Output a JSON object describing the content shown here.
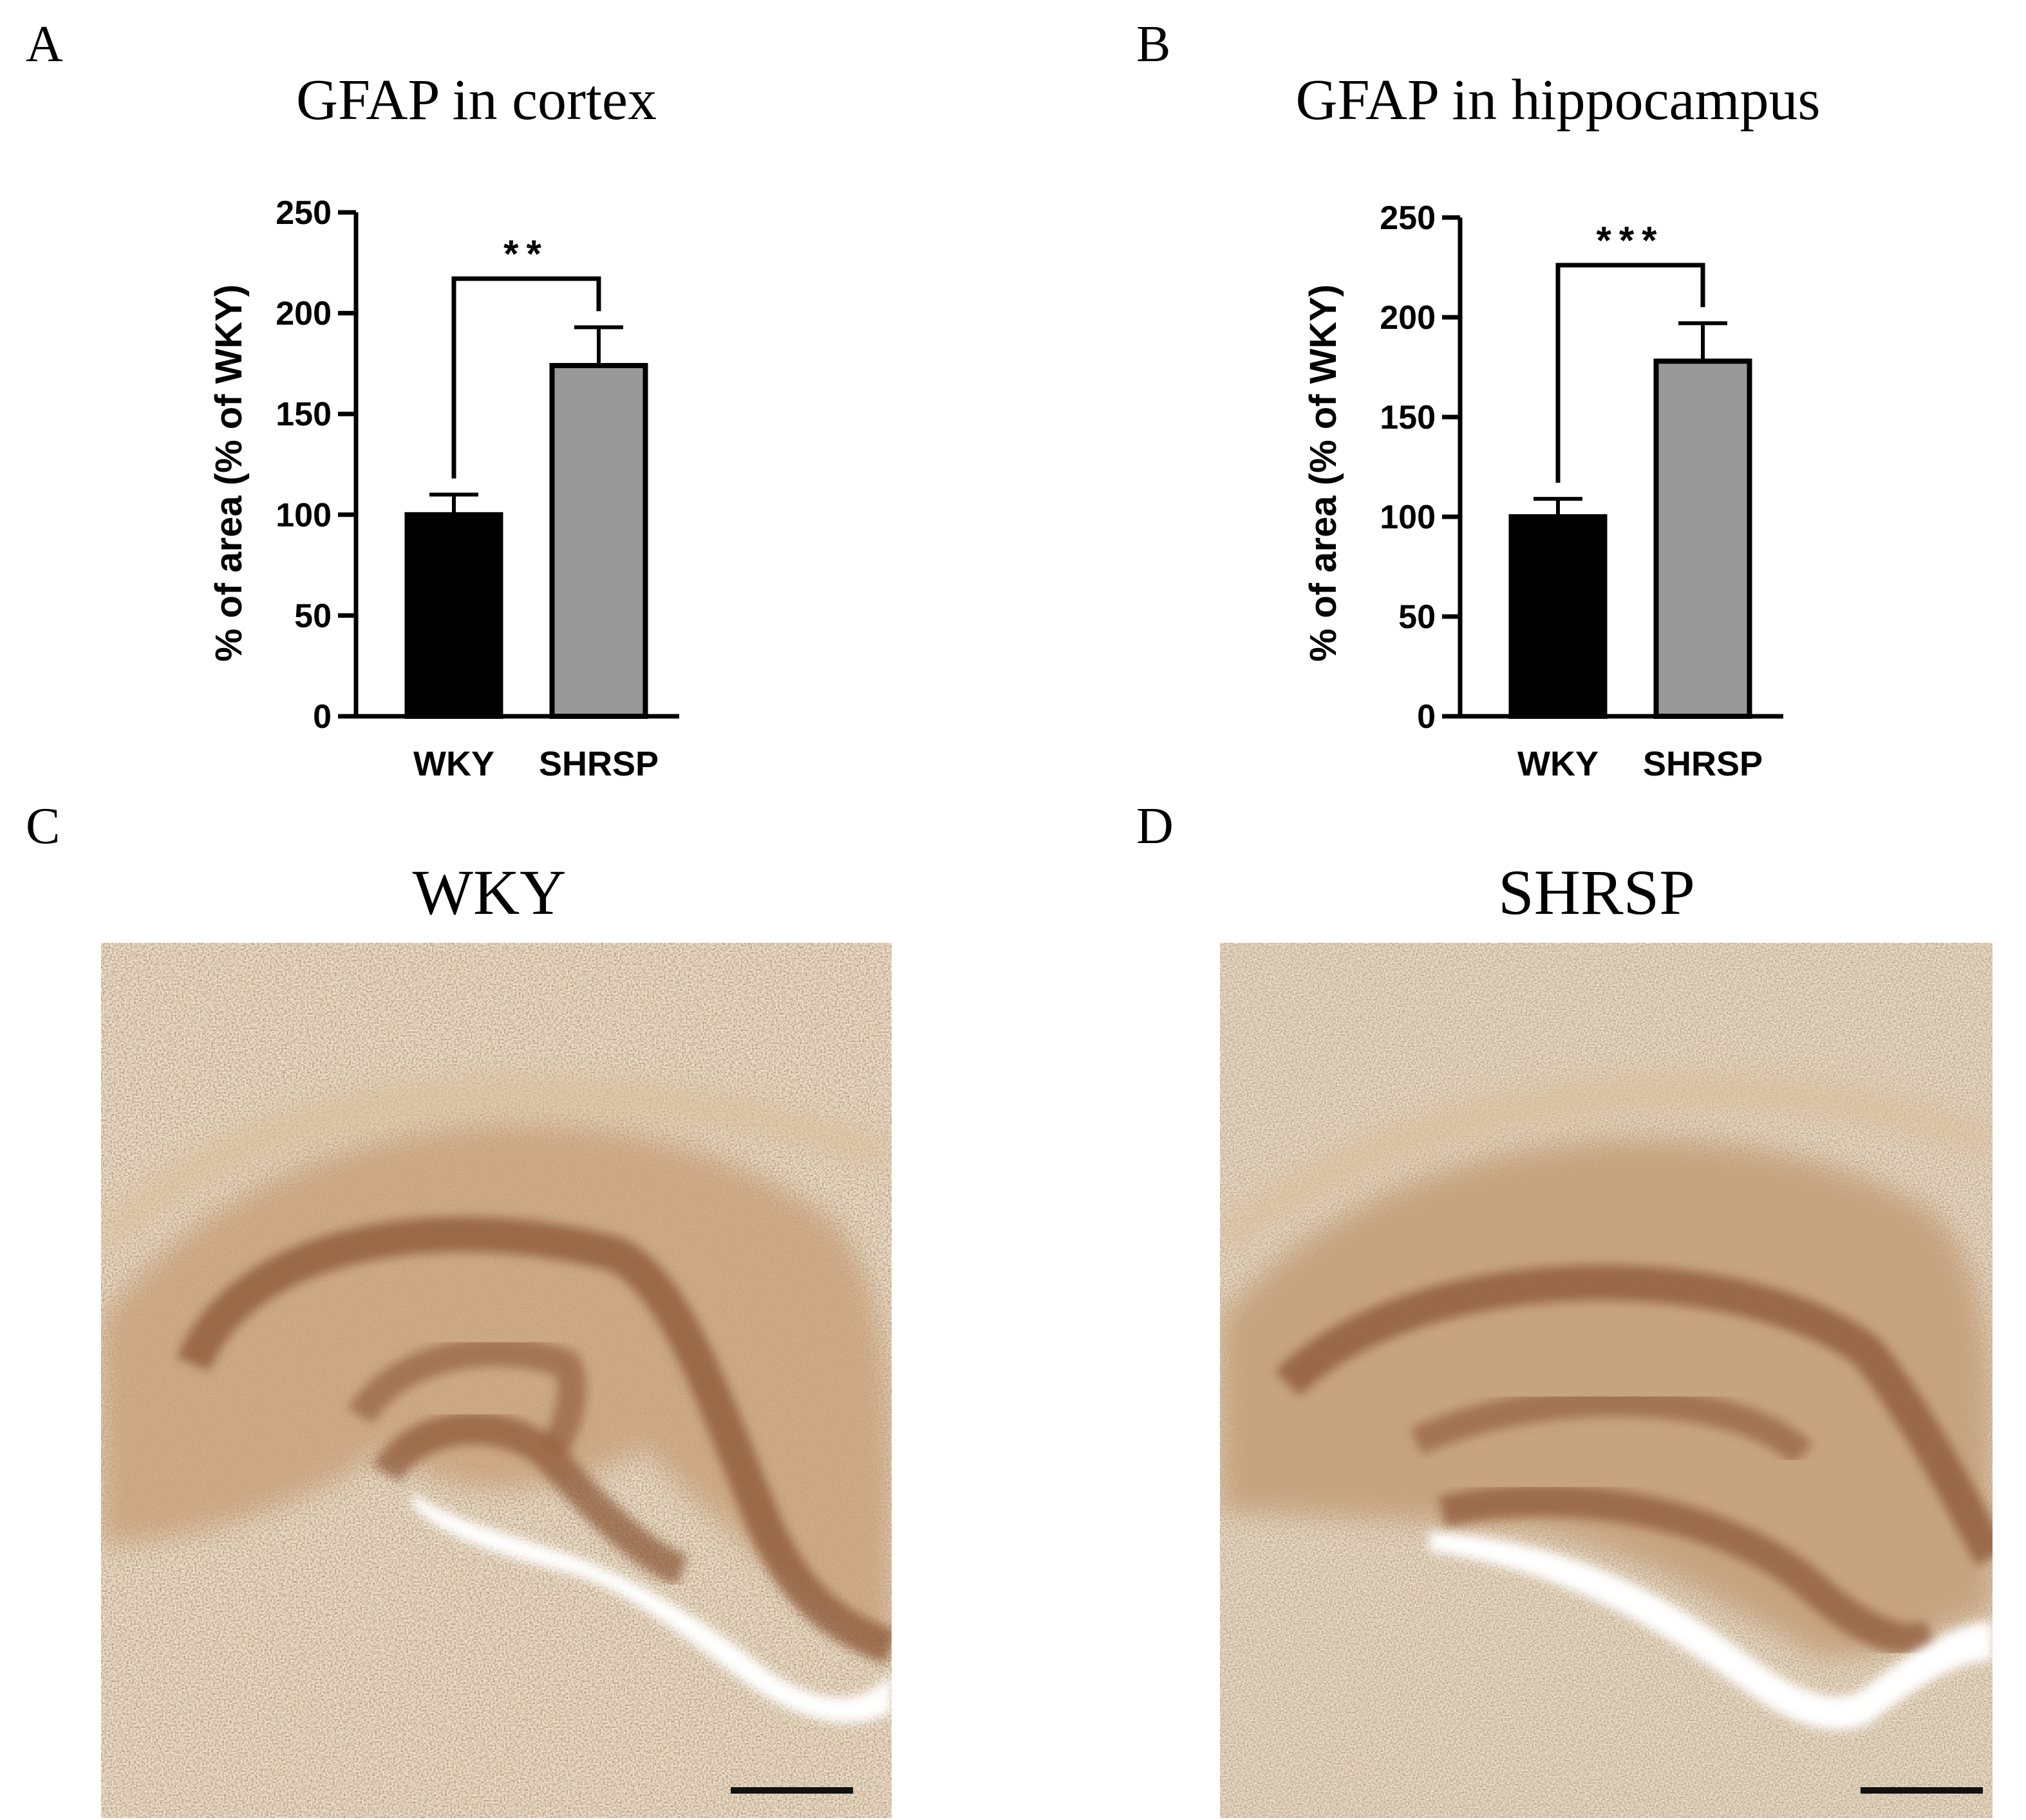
{
  "panels": {
    "a": {
      "letter": "A"
    },
    "b": {
      "letter": "B"
    },
    "c": {
      "letter": "C",
      "title": "WKY"
    },
    "d": {
      "letter": "D",
      "title": "SHRSP"
    }
  },
  "chart_data": [
    {
      "type": "bar",
      "title": "GFAP in cortex",
      "ylabel": "% of area (% of WKY)",
      "xlabel": "",
      "ylim": [
        0,
        250
      ],
      "yticks": [
        "0",
        "50",
        "100",
        "150",
        "200",
        "250"
      ],
      "categories": [
        "WKY",
        "SHRSP"
      ],
      "values": [
        100,
        174
      ],
      "errors": [
        10,
        19
      ],
      "colors": [
        "#000000",
        "#999999"
      ],
      "significance": "**"
    },
    {
      "type": "bar",
      "title": "GFAP in hippocampus",
      "ylabel": "% of area (% of WKY)",
      "xlabel": "",
      "ylim": [
        0,
        250
      ],
      "yticks": [
        "0",
        "50",
        "100",
        "150",
        "200",
        "250"
      ],
      "categories": [
        "WKY",
        "SHRSP"
      ],
      "values": [
        100,
        178
      ],
      "errors": [
        9,
        19
      ],
      "colors": [
        "#000000",
        "#999999"
      ],
      "significance": "***"
    }
  ]
}
